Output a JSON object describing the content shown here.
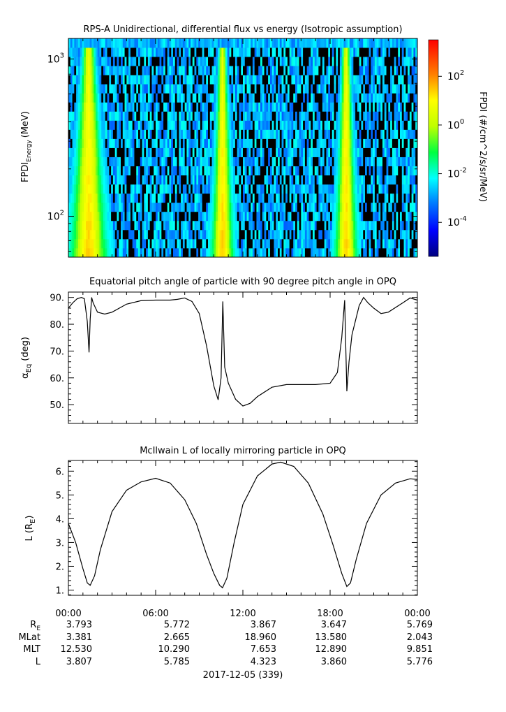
{
  "chart_data": [
    {
      "type": "heatmap",
      "title": "RPS-A Unidirectional, differential flux vs energy (Isotropic assumption)",
      "ylabel_main": "FPDI",
      "ylabel_sub": "Energy",
      "ylabel_unit": "(MeV)",
      "yscale": "log",
      "ylim": [
        55,
        1350
      ],
      "yticks": [
        {
          "value": 100,
          "base": "10",
          "exp": "2"
        },
        {
          "value": 1000,
          "base": "10",
          "exp": "3"
        }
      ],
      "colorbar": {
        "label": "FPDI (#/cm^2/s/sr/MeV)",
        "scale": "log",
        "range_log10": [
          -5.4,
          3.5
        ],
        "ticks": [
          {
            "value": 100,
            "base": "10",
            "exp": "2"
          },
          {
            "value": 1,
            "base": "10",
            "exp": "0"
          },
          {
            "value": 0.01,
            "base": "10",
            "exp": "-2"
          },
          {
            "value": 0.0001,
            "base": "10",
            "exp": "-4"
          }
        ]
      },
      "band_centers_hours": [
        1.4,
        10.6,
        19.1
      ],
      "energy_bins": 24,
      "time_bins": 180
    },
    {
      "type": "line",
      "title": "Equatorial pitch angle of particle with 90 degree pitch angle in OPQ",
      "ylabel_main": "α",
      "ylabel_sub": "Eq",
      "ylabel_unit": "(deg)",
      "ylim": [
        43,
        92
      ],
      "yticks": [
        {
          "value": 50,
          "label": "50."
        },
        {
          "value": 60,
          "label": "60."
        },
        {
          "value": 70,
          "label": "70."
        },
        {
          "value": 80,
          "label": "80."
        },
        {
          "value": 90,
          "label": "90."
        }
      ],
      "series": [
        {
          "x": [
            0,
            0.3,
            0.6,
            0.9,
            1.1,
            1.3,
            1.42,
            1.5,
            1.6,
            1.7,
            2.0,
            2.5,
            3.0,
            4.0,
            5.0,
            6.0,
            7.0,
            7.5,
            8.0,
            8.5,
            9.0,
            9.5,
            10.0,
            10.3,
            10.5,
            10.62,
            10.75,
            11.0,
            11.5,
            12.0,
            12.5,
            13.0,
            14.0,
            15.0,
            16.0,
            17.0,
            18.0,
            18.5,
            18.8,
            19.0,
            19.15,
            19.3,
            19.5,
            20.0,
            20.3,
            20.6,
            21.0,
            21.5,
            22.0,
            23.0,
            23.5,
            24.0
          ],
          "y": [
            86.0,
            88.0,
            89.5,
            90.0,
            89.5,
            81.0,
            69.5,
            82.0,
            90.0,
            88.0,
            84.5,
            83.8,
            84.5,
            87.5,
            88.8,
            89.0,
            89.0,
            89.3,
            89.8,
            88.5,
            84.0,
            72.0,
            57.0,
            51.8,
            60.0,
            88.5,
            64.0,
            58.0,
            52.0,
            49.5,
            50.5,
            53.0,
            56.5,
            57.5,
            57.5,
            57.5,
            58.0,
            62.0,
            75.0,
            89.0,
            55.0,
            66.0,
            76.0,
            87.0,
            90.0,
            88.0,
            86.0,
            84.0,
            84.5,
            88.0,
            89.8,
            89.0
          ]
        }
      ]
    },
    {
      "type": "line",
      "title": "McIlwain L of locally mirroring particle in OPQ",
      "ylabel_main": "L (R",
      "ylabel_sub": "E",
      "ylabel_unit": ")",
      "ylim": [
        0.78,
        6.45
      ],
      "yticks": [
        {
          "value": 1,
          "label": "1."
        },
        {
          "value": 2,
          "label": "2."
        },
        {
          "value": 3,
          "label": "3."
        },
        {
          "value": 4,
          "label": "4."
        },
        {
          "value": 5,
          "label": "5."
        },
        {
          "value": 6,
          "label": "6."
        }
      ],
      "series": [
        {
          "x": [
            0,
            0.5,
            1.0,
            1.3,
            1.5,
            1.8,
            2.2,
            3.0,
            4.0,
            5.0,
            6.0,
            7.0,
            8.0,
            8.8,
            9.5,
            10.0,
            10.4,
            10.6,
            10.9,
            11.4,
            12.0,
            13.0,
            14.0,
            14.6,
            15.5,
            16.5,
            17.5,
            18.2,
            18.8,
            19.15,
            19.4,
            19.8,
            20.5,
            21.5,
            22.5,
            23.5,
            24.0
          ],
          "y": [
            3.8,
            3.0,
            1.9,
            1.3,
            1.2,
            1.6,
            2.7,
            4.3,
            5.2,
            5.55,
            5.7,
            5.5,
            4.8,
            3.8,
            2.5,
            1.7,
            1.2,
            1.1,
            1.5,
            3.0,
            4.6,
            5.8,
            6.3,
            6.38,
            6.2,
            5.5,
            4.2,
            2.9,
            1.7,
            1.15,
            1.3,
            2.3,
            3.8,
            5.0,
            5.5,
            5.68,
            5.65
          ]
        }
      ]
    }
  ],
  "xaxis": {
    "ticks": [
      {
        "hour": 0,
        "label": "00:00"
      },
      {
        "hour": 6,
        "label": "06:00"
      },
      {
        "hour": 12,
        "label": "12:00"
      },
      {
        "hour": 18,
        "label": "18:00"
      },
      {
        "hour": 24,
        "label": "00:00"
      }
    ],
    "xlim": [
      0,
      24
    ],
    "date_label": "2017-12-05 (339)"
  },
  "ephemeris": {
    "rows": [
      {
        "label_main": "R",
        "label_sub": "E",
        "values": [
          "3.793",
          "5.772",
          "3.867",
          "3.647",
          "5.769"
        ]
      },
      {
        "label_main": "MLat",
        "label_sub": "",
        "values": [
          "3.381",
          "2.665",
          "18.960",
          "13.580",
          "2.043"
        ]
      },
      {
        "label_main": "MLT",
        "label_sub": "",
        "values": [
          "12.530",
          "10.290",
          "7.653",
          "12.890",
          "9.851"
        ]
      },
      {
        "label_main": "L",
        "label_sub": "",
        "values": [
          "3.807",
          "5.785",
          "4.323",
          "3.860",
          "5.776"
        ]
      }
    ]
  }
}
